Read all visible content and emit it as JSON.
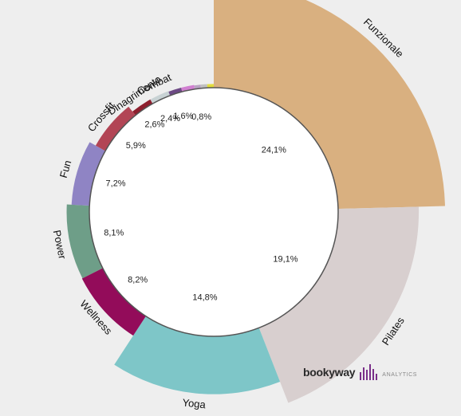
{
  "chart_data": {
    "type": "pie",
    "variant": "variable-radius donut",
    "title": "",
    "slices": [
      {
        "label": "Funzionale",
        "value": 24.1,
        "value_label": "24,1%",
        "color": "#d9b080"
      },
      {
        "label": "Pilates",
        "value": 19.1,
        "value_label": "19,1%",
        "color": "#d8cfcf"
      },
      {
        "label": "Yoga",
        "value": 14.8,
        "value_label": "14,8%",
        "color": "#7ec6c8"
      },
      {
        "label": "Wellness",
        "value": 8.2,
        "value_label": "8,2%",
        "color": "#930c5a"
      },
      {
        "label": "Power",
        "value": 8.1,
        "value_label": "8,1%",
        "color": "#6e9e88"
      },
      {
        "label": "Fun",
        "value": 7.2,
        "value_label": "7,2%",
        "color": "#8f84c4"
      },
      {
        "label": "Crossfit",
        "value": 5.9,
        "value_label": "5,9%",
        "color": "#b24555"
      },
      {
        "label": "Dinagrimento",
        "value": 2.6,
        "value_label": "2,6%",
        "color": "#8e1f2e"
      },
      {
        "label": "Combat",
        "value": 2.4,
        "value_label": "2,4%",
        "color": "#c8d2d4"
      },
      {
        "label": "",
        "value": 1.6,
        "value_label": "1,6%",
        "color": "#6d4a85"
      },
      {
        "label": "",
        "value": 1.6,
        "value_label": "",
        "color": "#d07fd0"
      },
      {
        "label": "",
        "value": 0.8,
        "value_label": "0,8%",
        "color": "#b8a2c2"
      },
      {
        "label": "",
        "value": 0.8,
        "value_label": "",
        "color": "#c0c0c0"
      },
      {
        "label": "",
        "value": 0.8,
        "value_label": "",
        "color": "#e2dd3c"
      }
    ],
    "colors": {
      "background": "#eeeeee",
      "inner_fill": "#ffffff",
      "inner_stroke": "#555555"
    },
    "legend": "none",
    "start": "top",
    "direction": "clockwise"
  },
  "brand": {
    "name": "bookyway",
    "tag": "ANALYTICS",
    "color": "#7a2f8a"
  }
}
